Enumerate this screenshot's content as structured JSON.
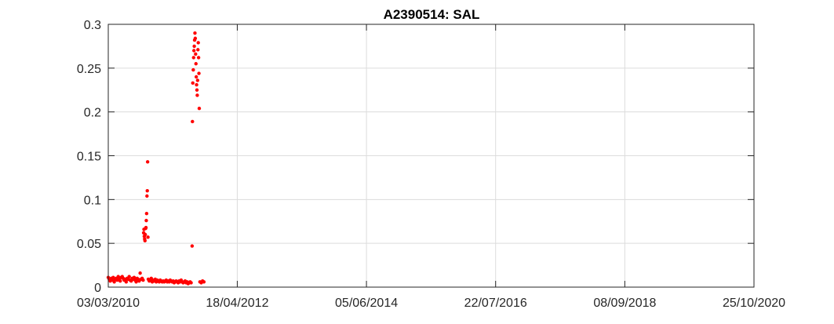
{
  "chart_data": {
    "type": "scatter",
    "title": "A2390514: SAL",
    "xlabel": "",
    "ylabel": "",
    "x_axis_type": "date",
    "xlim": [
      "2010-03-03",
      "2020-10-25"
    ],
    "ylim": [
      0,
      0.3
    ],
    "x_ticks": [
      "2010-03-03",
      "2012-04-18",
      "2014-06-05",
      "2016-07-22",
      "2018-09-08",
      "2020-10-25"
    ],
    "x_tick_labels": [
      "03/03/2010",
      "18/04/2012",
      "05/06/2014",
      "22/07/2016",
      "08/09/2018",
      "25/10/2020"
    ],
    "y_ticks": [
      0,
      0.05,
      0.1,
      0.15,
      0.2,
      0.25,
      0.3
    ],
    "y_tick_labels": [
      "0",
      "0.05",
      "0.1",
      "0.15",
      "0.2",
      "0.25",
      "0.3"
    ],
    "grid": true,
    "marker_color": "#ff0000",
    "series": [
      {
        "points": [
          [
            "2010-03-03",
            0.011
          ],
          [
            "2010-03-09",
            0.009
          ],
          [
            "2010-03-15",
            0.007
          ],
          [
            "2010-03-21",
            0.01
          ],
          [
            "2010-03-27",
            0.008
          ],
          [
            "2010-04-02",
            0.011
          ],
          [
            "2010-04-08",
            0.006
          ],
          [
            "2010-04-14",
            0.009
          ],
          [
            "2010-04-20",
            0.01
          ],
          [
            "2010-04-26",
            0.008
          ],
          [
            "2010-05-02",
            0.012
          ],
          [
            "2010-05-08",
            0.009
          ],
          [
            "2010-05-14",
            0.007
          ],
          [
            "2010-05-20",
            0.011
          ],
          [
            "2010-05-26",
            0.012
          ],
          [
            "2010-06-01",
            0.01
          ],
          [
            "2010-06-07",
            0.008
          ],
          [
            "2010-06-13",
            0.009
          ],
          [
            "2010-06-19",
            0.006
          ],
          [
            "2010-06-25",
            0.01
          ],
          [
            "2010-07-01",
            0.009
          ],
          [
            "2010-07-07",
            0.012
          ],
          [
            "2010-07-13",
            0.008
          ],
          [
            "2010-07-19",
            0.007
          ],
          [
            "2010-07-25",
            0.01
          ],
          [
            "2010-07-31",
            0.009
          ],
          [
            "2010-08-06",
            0.011
          ],
          [
            "2010-08-12",
            0.008
          ],
          [
            "2010-08-18",
            0.006
          ],
          [
            "2010-08-24",
            0.01
          ],
          [
            "2010-08-30",
            0.009
          ],
          [
            "2010-09-05",
            0.007
          ],
          [
            "2010-09-11",
            0.016
          ],
          [
            "2010-09-17",
            0.009
          ],
          [
            "2010-09-23",
            0.01
          ],
          [
            "2010-09-29",
            0.008
          ],
          [
            "2010-10-02",
            0.062
          ],
          [
            "2010-10-04",
            0.066
          ],
          [
            "2010-10-06",
            0.058
          ],
          [
            "2010-10-08",
            0.055
          ],
          [
            "2010-10-10",
            0.053
          ],
          [
            "2010-10-12",
            0.06
          ],
          [
            "2010-10-14",
            0.067
          ],
          [
            "2010-10-16",
            0.068
          ],
          [
            "2010-10-18",
            0.076
          ],
          [
            "2010-10-20",
            0.084
          ],
          [
            "2010-10-22",
            0.104
          ],
          [
            "2010-10-24",
            0.11
          ],
          [
            "2010-10-26",
            0.143
          ],
          [
            "2010-10-28",
            0.057
          ],
          [
            "2010-10-30",
            0.009
          ],
          [
            "2010-11-05",
            0.007
          ],
          [
            "2010-11-11",
            0.008
          ],
          [
            "2010-11-17",
            0.01
          ],
          [
            "2010-11-23",
            0.006
          ],
          [
            "2010-11-29",
            0.008
          ],
          [
            "2010-12-05",
            0.007
          ],
          [
            "2010-12-11",
            0.009
          ],
          [
            "2010-12-17",
            0.006
          ],
          [
            "2010-12-23",
            0.008
          ],
          [
            "2010-12-29",
            0.007
          ],
          [
            "2011-01-04",
            0.006
          ],
          [
            "2011-01-10",
            0.008
          ],
          [
            "2011-01-16",
            0.007
          ],
          [
            "2011-01-22",
            0.006
          ],
          [
            "2011-01-28",
            0.007
          ],
          [
            "2011-02-03",
            0.006
          ],
          [
            "2011-02-09",
            0.007
          ],
          [
            "2011-02-15",
            0.008
          ],
          [
            "2011-02-21",
            0.006
          ],
          [
            "2011-02-27",
            0.007
          ],
          [
            "2011-03-05",
            0.006
          ],
          [
            "2011-03-11",
            0.008
          ],
          [
            "2011-03-17",
            0.007
          ],
          [
            "2011-03-23",
            0.006
          ],
          [
            "2011-03-29",
            0.007
          ],
          [
            "2011-04-04",
            0.005
          ],
          [
            "2011-04-10",
            0.006
          ],
          [
            "2011-04-16",
            0.007
          ],
          [
            "2011-04-22",
            0.006
          ],
          [
            "2011-04-28",
            0.005
          ],
          [
            "2011-05-04",
            0.007
          ],
          [
            "2011-05-10",
            0.006
          ],
          [
            "2011-05-16",
            0.008
          ],
          [
            "2011-05-22",
            0.006
          ],
          [
            "2011-05-28",
            0.005
          ],
          [
            "2011-06-03",
            0.006
          ],
          [
            "2011-06-09",
            0.007
          ],
          [
            "2011-06-15",
            0.005
          ],
          [
            "2011-06-21",
            0.006
          ],
          [
            "2011-06-27",
            0.004
          ],
          [
            "2011-07-03",
            0.005
          ],
          [
            "2011-07-09",
            0.006
          ],
          [
            "2011-07-15",
            0.005
          ],
          [
            "2011-07-21",
            0.047
          ],
          [
            "2011-07-23",
            0.189
          ],
          [
            "2011-07-25",
            0.233
          ],
          [
            "2011-07-28",
            0.248
          ],
          [
            "2011-07-30",
            0.262
          ],
          [
            "2011-08-01",
            0.27
          ],
          [
            "2011-08-03",
            0.275
          ],
          [
            "2011-08-05",
            0.282
          ],
          [
            "2011-08-07",
            0.29
          ],
          [
            "2011-08-09",
            0.284
          ],
          [
            "2011-08-11",
            0.266
          ],
          [
            "2011-08-13",
            0.255
          ],
          [
            "2011-08-15",
            0.24
          ],
          [
            "2011-08-17",
            0.231
          ],
          [
            "2011-08-19",
            0.225
          ],
          [
            "2011-08-21",
            0.219
          ],
          [
            "2011-08-23",
            0.236
          ],
          [
            "2011-08-25",
            0.271
          ],
          [
            "2011-08-27",
            0.279
          ],
          [
            "2011-08-29",
            0.262
          ],
          [
            "2011-08-31",
            0.244
          ],
          [
            "2011-09-02",
            0.204
          ],
          [
            "2011-09-06",
            0.006
          ],
          [
            "2011-09-14",
            0.005
          ],
          [
            "2011-09-22",
            0.007
          ],
          [
            "2011-09-30",
            0.006
          ]
        ]
      }
    ]
  }
}
